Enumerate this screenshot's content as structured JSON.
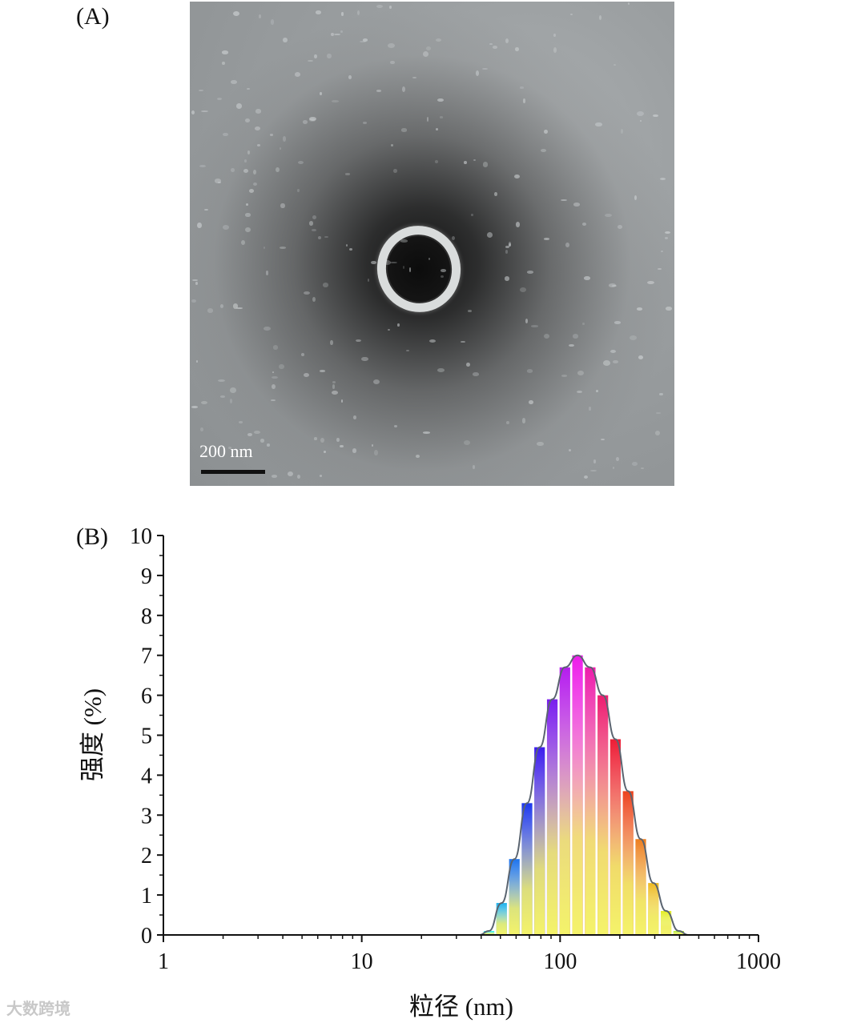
{
  "panel_a": {
    "label": "(A)",
    "scale_bar_text": "200 nm"
  },
  "panel_b": {
    "label": "(B)"
  },
  "watermark": "大数跨境",
  "chart_data": {
    "type": "bar",
    "xlabel": "粒径 (nm)",
    "ylabel": "强度 (%)",
    "x_scale": "log",
    "xlim": [
      1,
      1000
    ],
    "ylim": [
      0,
      10
    ],
    "x_ticks": [
      "1",
      "10",
      "100",
      "1000"
    ],
    "y_ticks": [
      "0",
      "1",
      "2",
      "3",
      "4",
      "5",
      "6",
      "7",
      "8",
      "9",
      "10"
    ],
    "grid": false,
    "x": [
      43.8,
      50.7,
      58.8,
      68.1,
      78.8,
      91.3,
      105.7,
      122.4,
      141.8,
      164.2,
      190.1,
      220.2,
      255.0,
      295.3,
      342.0,
      396.1
    ],
    "values": [
      0.1,
      0.8,
      1.9,
      3.3,
      4.7,
      5.9,
      6.7,
      7.0,
      6.7,
      6.0,
      4.9,
      3.6,
      2.4,
      1.3,
      0.6,
      0.1
    ],
    "fit_curve": true
  }
}
